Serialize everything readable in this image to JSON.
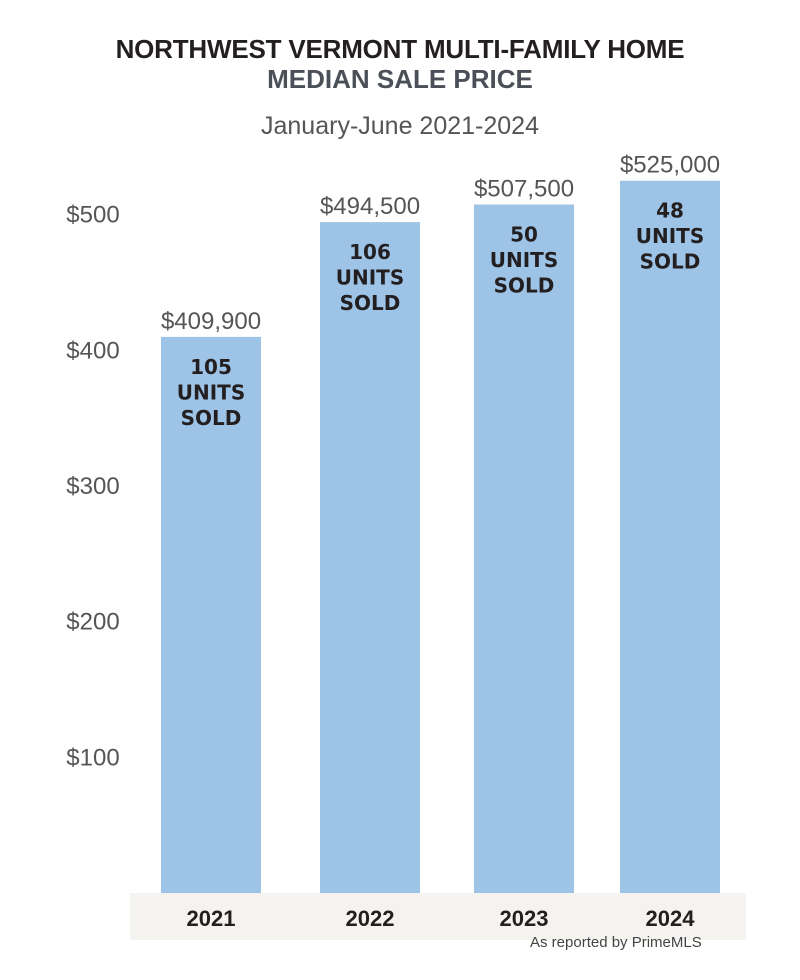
{
  "header": {
    "title_line1": "NORTHWEST VERMONT MULTI-FAMILY HOME",
    "title_line2": "MEDIAN SALE PRICE",
    "subtitle": "January-June 2021-2024"
  },
  "source_note": "As reported by PrimeMLS",
  "colors": {
    "bar": "#9dc3e6",
    "axis_band": "#f4f3ef",
    "tick_text": "#555555",
    "value_text": "#555555",
    "inner_text": "#231f20"
  },
  "chart_data": {
    "type": "bar",
    "title": "NORTHWEST VERMONT MULTI-FAMILY HOME MEDIAN SALE PRICE",
    "subtitle": "January-June 2021-2024",
    "categories": [
      "2021",
      "2022",
      "2023",
      "2024"
    ],
    "values": [
      409.9,
      494.5,
      507.5,
      525.0
    ],
    "value_labels": [
      "$409,900",
      "$494,500",
      "$507,500",
      "$525,000"
    ],
    "units_sold": [
      105,
      106,
      50,
      48
    ],
    "inner_labels": [
      [
        "105",
        "UNITS",
        "SOLD"
      ],
      [
        "106",
        "UNITS",
        "SOLD"
      ],
      [
        "50",
        "UNITS",
        "SOLD"
      ],
      [
        "48",
        "UNITS",
        "SOLD"
      ]
    ],
    "yticks": [
      100,
      200,
      300,
      400,
      500
    ],
    "ytick_labels": [
      "$100",
      "$200",
      "$300",
      "$400",
      "$500"
    ],
    "ylim": [
      0,
      525
    ],
    "xlabel": "",
    "ylabel": "",
    "grid": false,
    "legend": "none"
  }
}
